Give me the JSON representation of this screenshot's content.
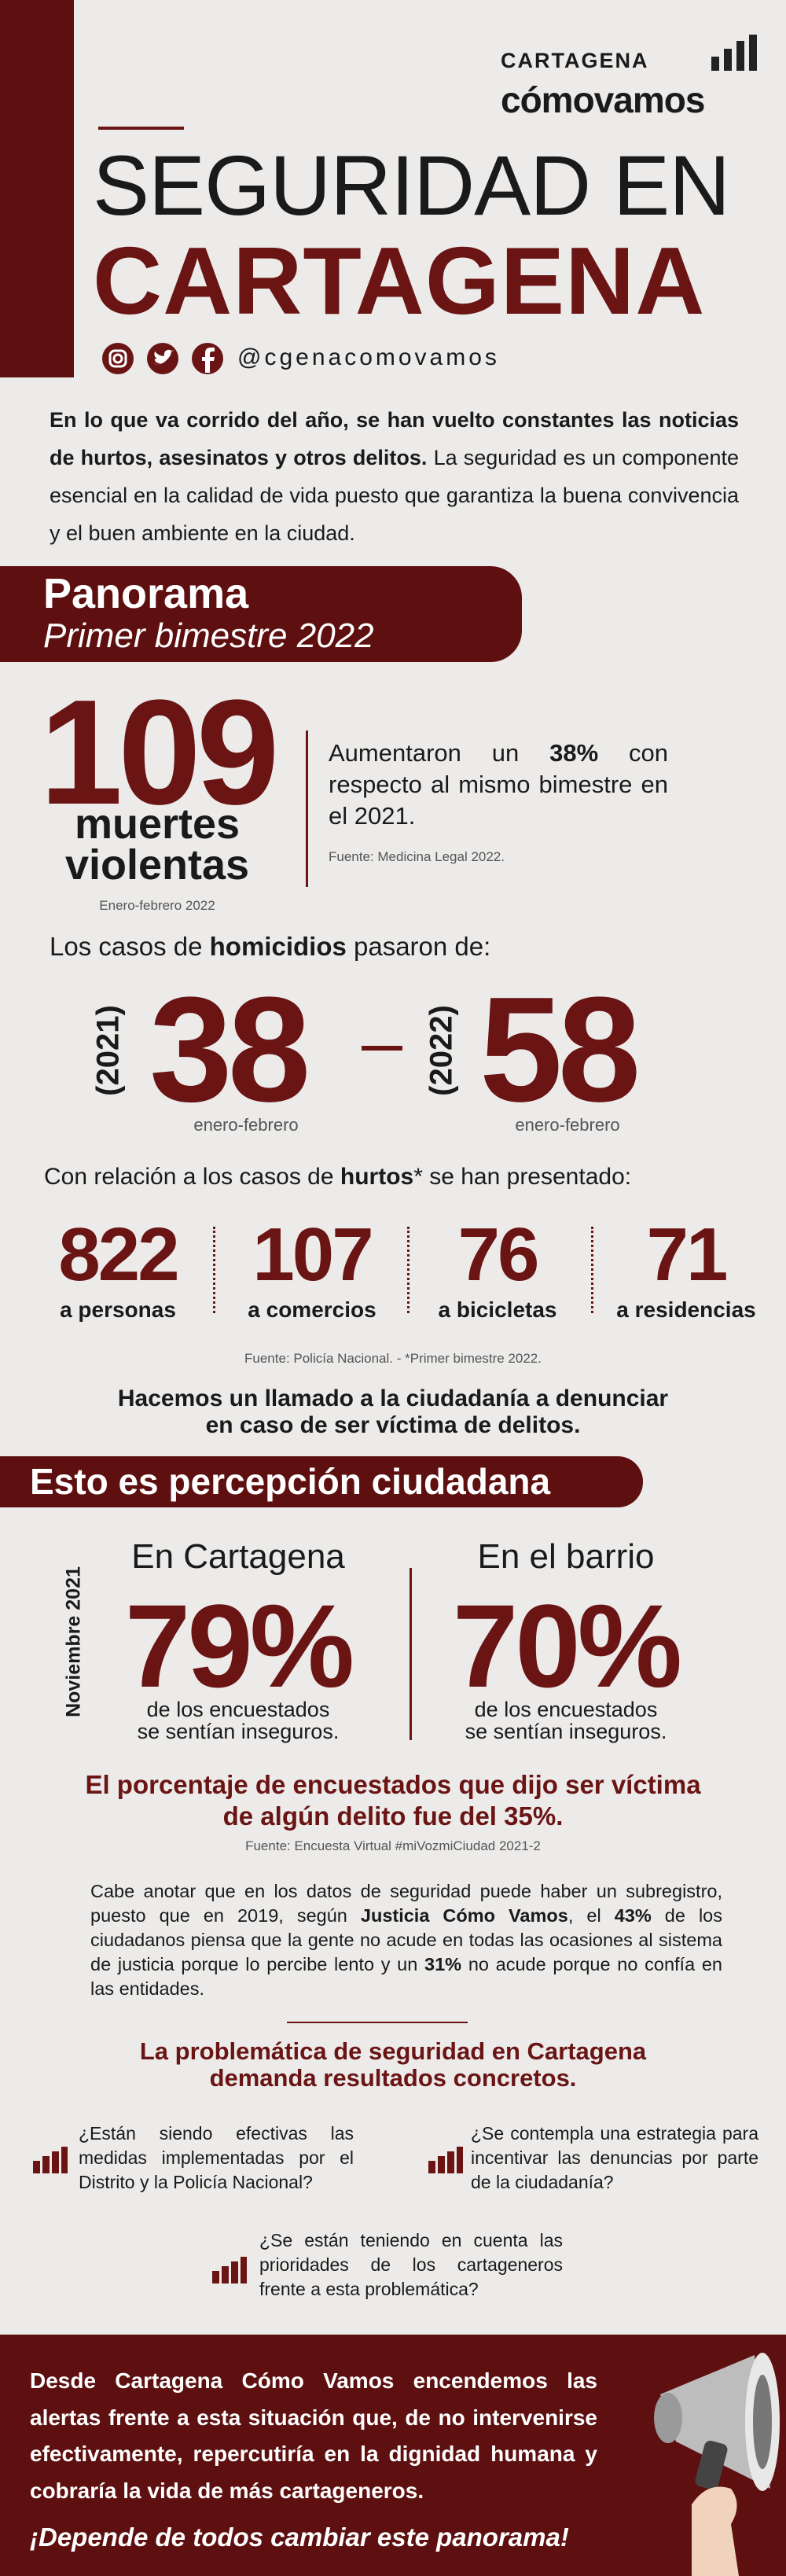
{
  "logo": {
    "top": "CARTAGENA",
    "bottom": "cómovamos"
  },
  "header": {
    "title_line1": "SEGURIDAD EN",
    "title_line2": "CARTAGENA",
    "handle": "@cgenacomovamos"
  },
  "intro": {
    "bold": "En lo que va corrido del año, se han vuelto constantes las noticias de hurtos, asesinatos y otros delitos.",
    "text": "La seguridad es un componente esencial en la calidad de vida puesto que garantiza la buena convivencia y el buen ambiente en la ciudad."
  },
  "panorama": {
    "title": "Panorama",
    "subtitle": "Primer bimestre 2022"
  },
  "violent_deaths": {
    "value": "109",
    "label_line1": "muertes",
    "label_line2": "violentas",
    "period": "Enero-febrero 2022",
    "note_before": "Aumentaron un",
    "note_highlight": "38%",
    "note_after": "con respecto al mismo bimestre en el 2021.",
    "source": "Fuente: Medicina Legal 2022."
  },
  "homicides": {
    "intro_before": "Los casos de",
    "intro_highlight": "homicidios",
    "intro_after": "pasaron de:",
    "items": [
      {
        "year": "(2021)",
        "value": "38",
        "period": "enero-febrero"
      },
      {
        "year": "(2022)",
        "value": "58",
        "period": "enero-febrero"
      }
    ]
  },
  "thefts": {
    "intro_before": "Con relación a los casos de",
    "intro_highlight": "hurtos",
    "intro_after": "* se han presentado:",
    "items": [
      {
        "value": "822",
        "label": "a personas"
      },
      {
        "value": "107",
        "label": "a comercios"
      },
      {
        "value": "76",
        "label": "a bicicletas"
      },
      {
        "value": "71",
        "label": "a residencias"
      }
    ],
    "source": "Fuente: Policía Nacional. - *Primer bimestre 2022.",
    "call_lines": [
      "Hacemos un llamado a la ciudadanía a denunciar",
      "en caso de ser víctima de delitos."
    ]
  },
  "perception": {
    "title": "Esto es percepción ciudadana",
    "date": "Noviembre 2021",
    "items": [
      {
        "place": "En Cartagena",
        "value": "79%",
        "caption_lines": [
          "de los encuestados",
          "se sentían inseguros."
        ]
      },
      {
        "place": "En el barrio",
        "value": "70%",
        "caption_lines": [
          "de los encuestados",
          "se sentían inseguros."
        ]
      }
    ],
    "victim_lines": [
      "El porcentaje de encuestados que dijo ser víctima",
      "de algún delito fue del 35%."
    ],
    "source": "Fuente: Encuesta Virtual #miVozmiCiudad 2021-2",
    "paragraph": [
      "Cabe anotar que en los datos de seguridad puede haber un subregistro, puesto que en 2019, según",
      "Justicia Cómo Vamos",
      ", el",
      "43%",
      "de los ciudadanos piensa que la gente no acude en todas las ocasiones al sistema de justicia porque lo percibe lento y un",
      "31%",
      "no acude porque no confía en las entidades."
    ]
  },
  "demands": {
    "title_lines": [
      "La problemática de seguridad en Cartagena",
      "demanda resultados concretos."
    ],
    "questions": [
      "¿Están siendo efectivas las medidas implementadas por el Distrito y la Policía Nacional?",
      "¿Se contempla una estrategia para incentivar las denuncias por parte de la ciudadanía?",
      "¿Se están teniendo en cuenta las prioridades de los cartageneros frente a esta problemática?"
    ]
  },
  "footer": {
    "text": "Desde Cartagena Cómo Vamos encendemos las alertas frente a esta situación que, de no intervenirse efectivamente, repercutiría en la dignidad humana y cobraría la vida de más cartageneros.",
    "slogan": "¡Depende de todos cambiar este panorama!"
  }
}
